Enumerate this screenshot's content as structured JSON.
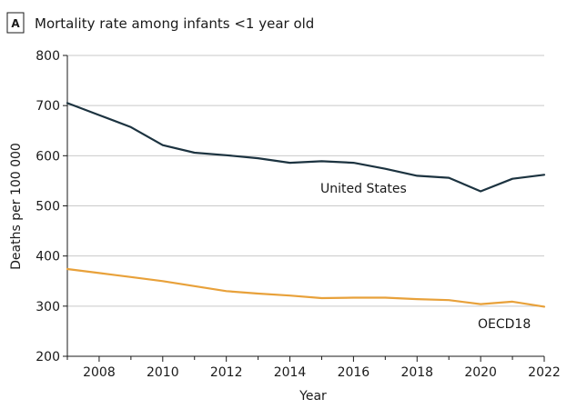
{
  "panel_letter": "A",
  "chart_data": {
    "type": "line",
    "title": "Mortality rate among infants <1 year old",
    "xlabel": "Year",
    "ylabel": "Deaths per 100 000",
    "xlim": [
      2007,
      2022
    ],
    "ylim": [
      200,
      800
    ],
    "xticks": [
      2008,
      2010,
      2012,
      2014,
      2016,
      2018,
      2020,
      2022
    ],
    "yticks": [
      200,
      300,
      400,
      500,
      600,
      700,
      800
    ],
    "grid": "horizontal",
    "series": [
      {
        "name": "United States",
        "color": "#1c3340",
        "x": [
          2007,
          2008,
          2009,
          2010,
          2011,
          2012,
          2013,
          2014,
          2015,
          2016,
          2017,
          2018,
          2019,
          2020,
          2021,
          2022
        ],
        "values": [
          705,
          681,
          657,
          621,
          606,
          601,
          595,
          586,
          589,
          586,
          574,
          560,
          556,
          529,
          554,
          562
        ]
      },
      {
        "name": "OECD18",
        "color": "#e8a13a",
        "x": [
          2007,
          2008,
          2009,
          2010,
          2011,
          2012,
          2013,
          2014,
          2015,
          2016,
          2017,
          2018,
          2019,
          2020,
          2021,
          2022
        ],
        "values": [
          374,
          366,
          358,
          350,
          340,
          330,
          325,
          321,
          316,
          317,
          317,
          314,
          312,
          304,
          309,
          299
        ]
      }
    ]
  }
}
